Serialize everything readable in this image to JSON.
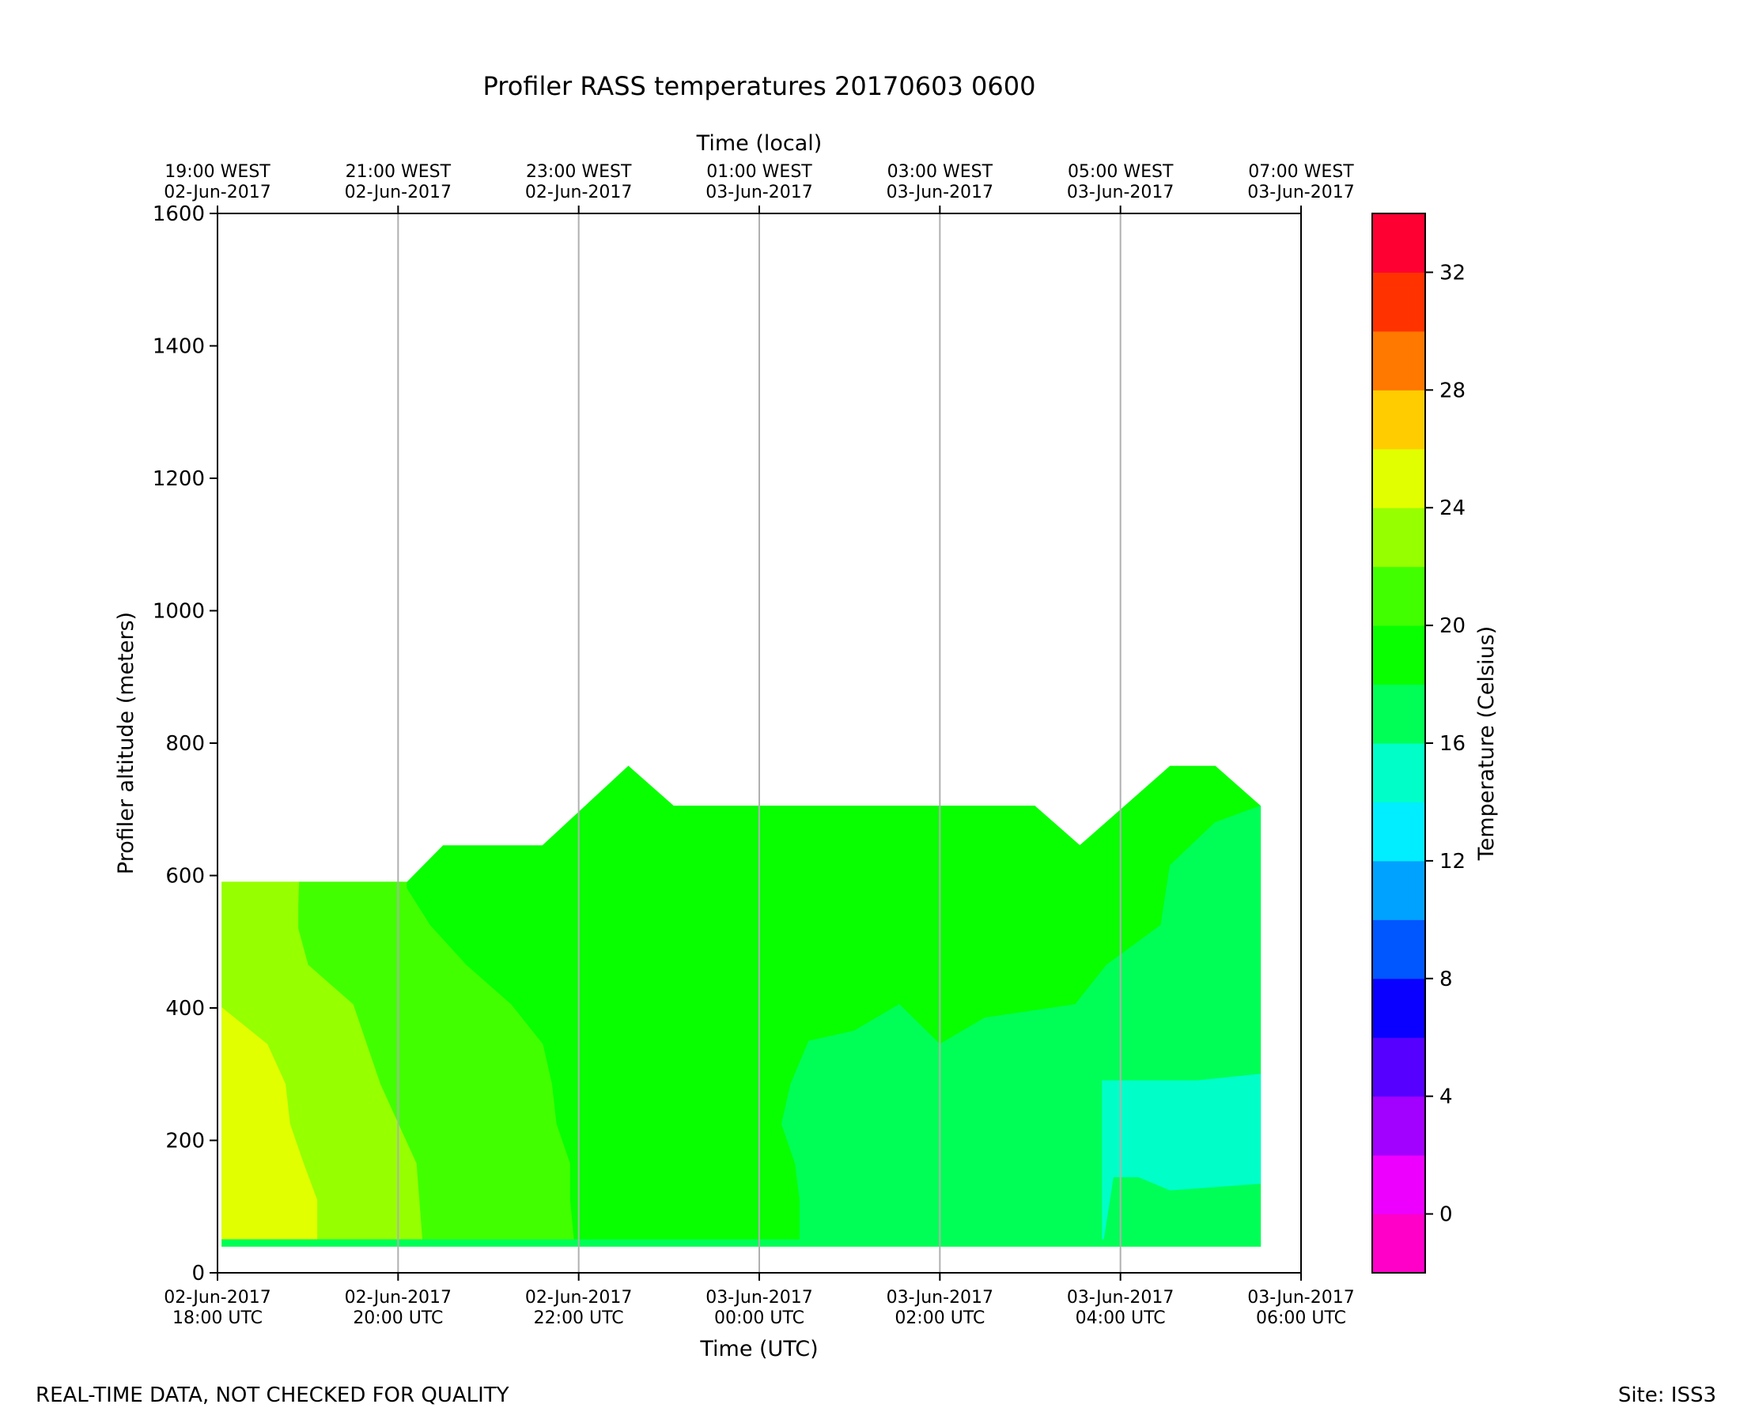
{
  "chart_data": {
    "type": "filled-contour",
    "title": "Profiler RASS temperatures 20170603 0600",
    "xlabel": "Time (UTC)",
    "x2label": "Time (local)",
    "ylabel": "Profiler altitude (meters)",
    "colorbar_label": "Temperature (Celsius)",
    "x_unit": "hours since 02-Jun-2017 18:00 UTC",
    "xlim": [
      0,
      12
    ],
    "ylim": [
      0,
      1600
    ],
    "grid": "vertical",
    "x_ticks": [
      {
        "x": 0,
        "utc": [
          "02-Jun-2017",
          "18:00 UTC"
        ],
        "local": [
          "19:00 WEST",
          "02-Jun-2017"
        ]
      },
      {
        "x": 2,
        "utc": [
          "02-Jun-2017",
          "20:00 UTC"
        ],
        "local": [
          "21:00 WEST",
          "02-Jun-2017"
        ]
      },
      {
        "x": 4,
        "utc": [
          "02-Jun-2017",
          "22:00 UTC"
        ],
        "local": [
          "23:00 WEST",
          "02-Jun-2017"
        ]
      },
      {
        "x": 6,
        "utc": [
          "03-Jun-2017",
          "00:00 UTC"
        ],
        "local": [
          "01:00 WEST",
          "03-Jun-2017"
        ]
      },
      {
        "x": 8,
        "utc": [
          "03-Jun-2017",
          "02:00 UTC"
        ],
        "local": [
          "03:00 WEST",
          "03-Jun-2017"
        ]
      },
      {
        "x": 10,
        "utc": [
          "03-Jun-2017",
          "04:00 UTC"
        ],
        "local": [
          "05:00 WEST",
          "03-Jun-2017"
        ]
      },
      {
        "x": 12,
        "utc": [
          "03-Jun-2017",
          "06:00 UTC"
        ],
        "local": [
          "07:00 WEST",
          "03-Jun-2017"
        ]
      }
    ],
    "y_ticks": [
      "0",
      "200",
      "400",
      "600",
      "800",
      "1000",
      "1200",
      "1400",
      "1600"
    ],
    "colorbar": {
      "min": -2,
      "max": 34,
      "step": 2,
      "tick_values": [
        0,
        4,
        8,
        12,
        16,
        20,
        24,
        28,
        32
      ],
      "tick_labels": [
        "0",
        "4",
        "8",
        "12",
        "16",
        "20",
        "24",
        "28",
        "32"
      ],
      "colors": [
        "#ff00c8",
        "#ee00ff",
        "#a200ff",
        "#5600ff",
        "#0a00ff",
        "#0056ff",
        "#00a2ff",
        "#00eeff",
        "#00ffc8",
        "#00ff56",
        "#08ff00",
        "#42ff00",
        "#96ff00",
        "#e2ff00",
        "#ffcc00",
        "#ff7800",
        "#ff3200",
        "#ff0032"
      ]
    },
    "regions": [
      {
        "level": "22-24",
        "color": "#96ff00",
        "points": [
          [
            0.05,
            40
          ],
          [
            0.05,
            590
          ],
          [
            0.9,
            590
          ],
          [
            0.9,
            40
          ]
        ]
      },
      {
        "level": "20-22",
        "color": "#42ff00",
        "points": [
          [
            0.9,
            40
          ],
          [
            0.9,
            590
          ],
          [
            2.1,
            590
          ],
          [
            2.1,
            40
          ]
        ]
      },
      {
        "level": "18-20",
        "color": "#08ff00",
        "points": [
          [
            2.1,
            40
          ],
          [
            2.1,
            590
          ],
          [
            2.5,
            645
          ],
          [
            3.6,
            645
          ],
          [
            4.55,
            765
          ],
          [
            5.05,
            705
          ],
          [
            9.05,
            705
          ],
          [
            9.55,
            645
          ],
          [
            10.55,
            765
          ],
          [
            11.05,
            765
          ],
          [
            11.55,
            705
          ],
          [
            11.55,
            40
          ]
        ]
      },
      {
        "level": "20-22",
        "color": "#42ff00",
        "points": [
          [
            0.9,
            40
          ],
          [
            0.9,
            590
          ],
          [
            2.05,
            590
          ],
          [
            2.35,
            525
          ],
          [
            2.75,
            465
          ],
          [
            3.25,
            405
          ],
          [
            3.6,
            345
          ],
          [
            3.7,
            285
          ],
          [
            3.75,
            225
          ],
          [
            3.9,
            165
          ],
          [
            3.9,
            110
          ],
          [
            3.95,
            40
          ]
        ]
      },
      {
        "level": "22-24",
        "color": "#96ff00",
        "points": [
          [
            0.05,
            40
          ],
          [
            0.05,
            590
          ],
          [
            0.9,
            590
          ],
          [
            0.88,
            525
          ],
          [
            1.0,
            465
          ],
          [
            1.5,
            405
          ],
          [
            1.65,
            345
          ],
          [
            1.8,
            285
          ],
          [
            2.0,
            225
          ],
          [
            2.2,
            165
          ],
          [
            2.27,
            40
          ]
        ]
      },
      {
        "level": "24-26",
        "color": "#e2ff00",
        "points": [
          [
            0.05,
            40
          ],
          [
            0.05,
            400
          ],
          [
            0.55,
            345
          ],
          [
            0.75,
            285
          ],
          [
            0.8,
            225
          ],
          [
            0.95,
            165
          ],
          [
            1.1,
            110
          ],
          [
            1.1,
            40
          ]
        ]
      },
      {
        "level": "16-18",
        "color": "#00ff56",
        "points": [
          [
            6.45,
            40
          ],
          [
            6.45,
            110
          ],
          [
            6.4,
            165
          ],
          [
            6.25,
            225
          ],
          [
            6.35,
            285
          ],
          [
            6.55,
            350
          ],
          [
            7.05,
            365
          ],
          [
            7.55,
            405
          ],
          [
            8.0,
            345
          ],
          [
            8.5,
            385
          ],
          [
            9.5,
            405
          ],
          [
            9.85,
            465
          ],
          [
            10.45,
            525
          ],
          [
            10.55,
            615
          ],
          [
            11.05,
            680
          ],
          [
            11.55,
            705
          ],
          [
            11.55,
            40
          ]
        ]
      },
      {
        "level": "14-16",
        "color": "#00ffc8",
        "points": [
          [
            9.8,
            40
          ],
          [
            9.8,
            290
          ],
          [
            10.85,
            290
          ],
          [
            11.55,
            300
          ],
          [
            11.55,
            135
          ],
          [
            10.55,
            125
          ],
          [
            10.2,
            145
          ],
          [
            9.92,
            145
          ]
        ]
      },
      {
        "level": "16-18",
        "color": "#00ff56",
        "points": [
          [
            0.05,
            40
          ],
          [
            0.05,
            50
          ],
          [
            11.55,
            50
          ],
          [
            11.55,
            40
          ]
        ]
      }
    ]
  },
  "footer": {
    "left": "REAL-TIME DATA, NOT CHECKED FOR QUALITY",
    "right": "Site: ISS3"
  }
}
